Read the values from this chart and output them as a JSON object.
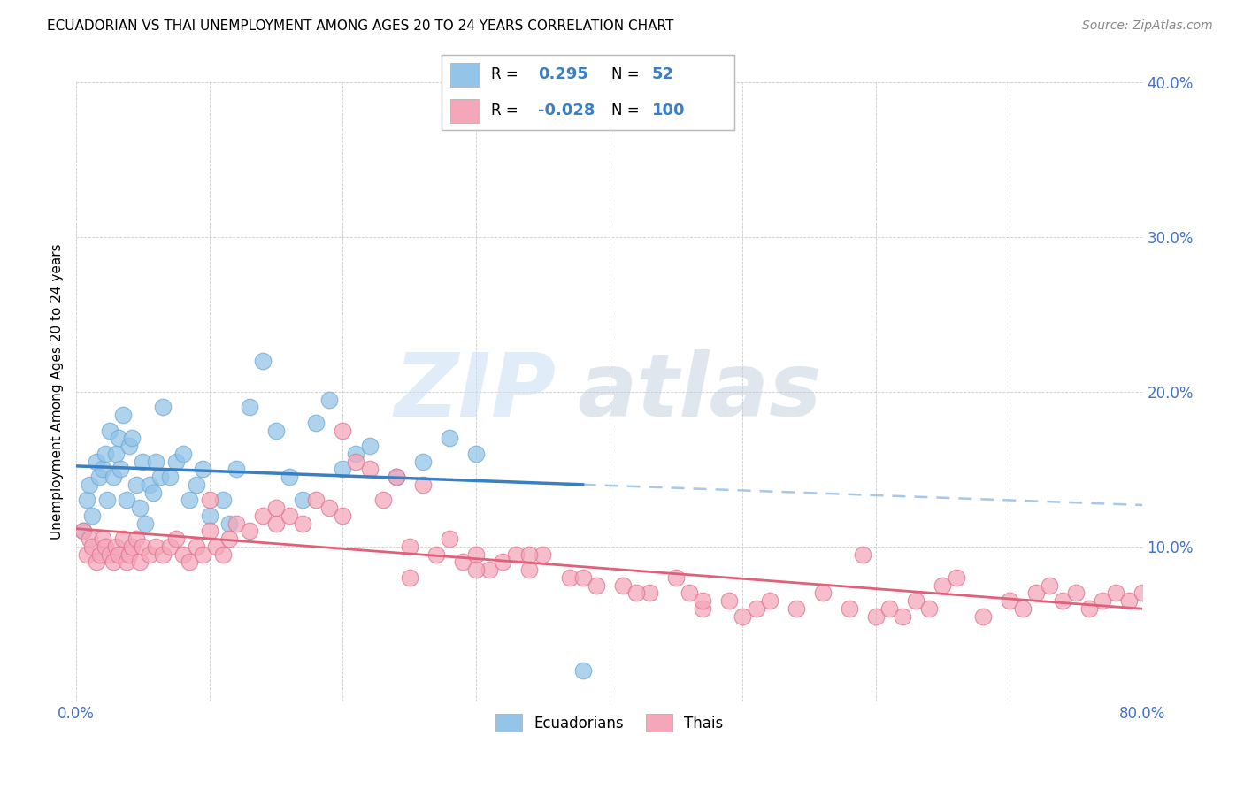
{
  "title": "ECUADORIAN VS THAI UNEMPLOYMENT AMONG AGES 20 TO 24 YEARS CORRELATION CHART",
  "source": "Source: ZipAtlas.com",
  "ylabel": "Unemployment Among Ages 20 to 24 years",
  "xlim": [
    0.0,
    0.8
  ],
  "ylim": [
    0.0,
    0.4
  ],
  "ecuadorian_color": "#94C4E8",
  "ecuadorian_edge": "#6AAAD4",
  "thai_color": "#F4A7B9",
  "thai_edge": "#E07090",
  "regression_blue": "#3A7FC1",
  "regression_pink": "#E0607A",
  "regression_dashed": "#A8C8E8",
  "ecuadorian_R": 0.295,
  "ecuadorian_N": 52,
  "thai_R": -0.028,
  "thai_N": 100,
  "watermark_zip": "ZIP",
  "watermark_atlas": "atlas",
  "legend_ecuadorians": "Ecuadorians",
  "legend_thais": "Thais",
  "ecuadorian_x": [
    0.005,
    0.008,
    0.01,
    0.012,
    0.015,
    0.017,
    0.02,
    0.022,
    0.023,
    0.025,
    0.028,
    0.03,
    0.032,
    0.033,
    0.035,
    0.038,
    0.04,
    0.042,
    0.045,
    0.048,
    0.05,
    0.052,
    0.055,
    0.058,
    0.06,
    0.063,
    0.065,
    0.07,
    0.075,
    0.08,
    0.085,
    0.09,
    0.095,
    0.1,
    0.11,
    0.115,
    0.12,
    0.13,
    0.14,
    0.15,
    0.16,
    0.17,
    0.18,
    0.19,
    0.2,
    0.21,
    0.22,
    0.24,
    0.26,
    0.28,
    0.3,
    0.38
  ],
  "ecuadorian_y": [
    0.11,
    0.13,
    0.14,
    0.12,
    0.155,
    0.145,
    0.15,
    0.16,
    0.13,
    0.175,
    0.145,
    0.16,
    0.17,
    0.15,
    0.185,
    0.13,
    0.165,
    0.17,
    0.14,
    0.125,
    0.155,
    0.115,
    0.14,
    0.135,
    0.155,
    0.145,
    0.19,
    0.145,
    0.155,
    0.16,
    0.13,
    0.14,
    0.15,
    0.12,
    0.13,
    0.115,
    0.15,
    0.19,
    0.22,
    0.175,
    0.145,
    0.13,
    0.18,
    0.195,
    0.15,
    0.16,
    0.165,
    0.145,
    0.155,
    0.17,
    0.16,
    0.02
  ],
  "thai_x": [
    0.005,
    0.008,
    0.01,
    0.012,
    0.015,
    0.018,
    0.02,
    0.022,
    0.025,
    0.028,
    0.03,
    0.032,
    0.035,
    0.038,
    0.04,
    0.042,
    0.045,
    0.048,
    0.05,
    0.055,
    0.06,
    0.065,
    0.07,
    0.075,
    0.08,
    0.085,
    0.09,
    0.095,
    0.1,
    0.105,
    0.11,
    0.115,
    0.12,
    0.13,
    0.14,
    0.15,
    0.16,
    0.17,
    0.18,
    0.19,
    0.2,
    0.21,
    0.22,
    0.23,
    0.24,
    0.25,
    0.26,
    0.27,
    0.28,
    0.29,
    0.3,
    0.31,
    0.32,
    0.33,
    0.34,
    0.35,
    0.37,
    0.39,
    0.41,
    0.43,
    0.45,
    0.46,
    0.47,
    0.49,
    0.5,
    0.51,
    0.52,
    0.54,
    0.56,
    0.58,
    0.6,
    0.61,
    0.62,
    0.63,
    0.64,
    0.65,
    0.66,
    0.68,
    0.7,
    0.71,
    0.72,
    0.73,
    0.74,
    0.75,
    0.76,
    0.77,
    0.78,
    0.79,
    0.8,
    0.81,
    0.59,
    0.47,
    0.42,
    0.38,
    0.34,
    0.3,
    0.25,
    0.2,
    0.15,
    0.1
  ],
  "thai_y": [
    0.11,
    0.095,
    0.105,
    0.1,
    0.09,
    0.095,
    0.105,
    0.1,
    0.095,
    0.09,
    0.1,
    0.095,
    0.105,
    0.09,
    0.095,
    0.1,
    0.105,
    0.09,
    0.1,
    0.095,
    0.1,
    0.095,
    0.1,
    0.105,
    0.095,
    0.09,
    0.1,
    0.095,
    0.11,
    0.1,
    0.095,
    0.105,
    0.115,
    0.11,
    0.12,
    0.115,
    0.12,
    0.115,
    0.13,
    0.125,
    0.175,
    0.155,
    0.15,
    0.13,
    0.145,
    0.1,
    0.14,
    0.095,
    0.105,
    0.09,
    0.095,
    0.085,
    0.09,
    0.095,
    0.085,
    0.095,
    0.08,
    0.075,
    0.075,
    0.07,
    0.08,
    0.07,
    0.06,
    0.065,
    0.055,
    0.06,
    0.065,
    0.06,
    0.07,
    0.06,
    0.055,
    0.06,
    0.055,
    0.065,
    0.06,
    0.075,
    0.08,
    0.055,
    0.065,
    0.06,
    0.07,
    0.075,
    0.065,
    0.07,
    0.06,
    0.065,
    0.07,
    0.065,
    0.07,
    0.065,
    0.095,
    0.065,
    0.07,
    0.08,
    0.095,
    0.085,
    0.08,
    0.12,
    0.125,
    0.13
  ]
}
